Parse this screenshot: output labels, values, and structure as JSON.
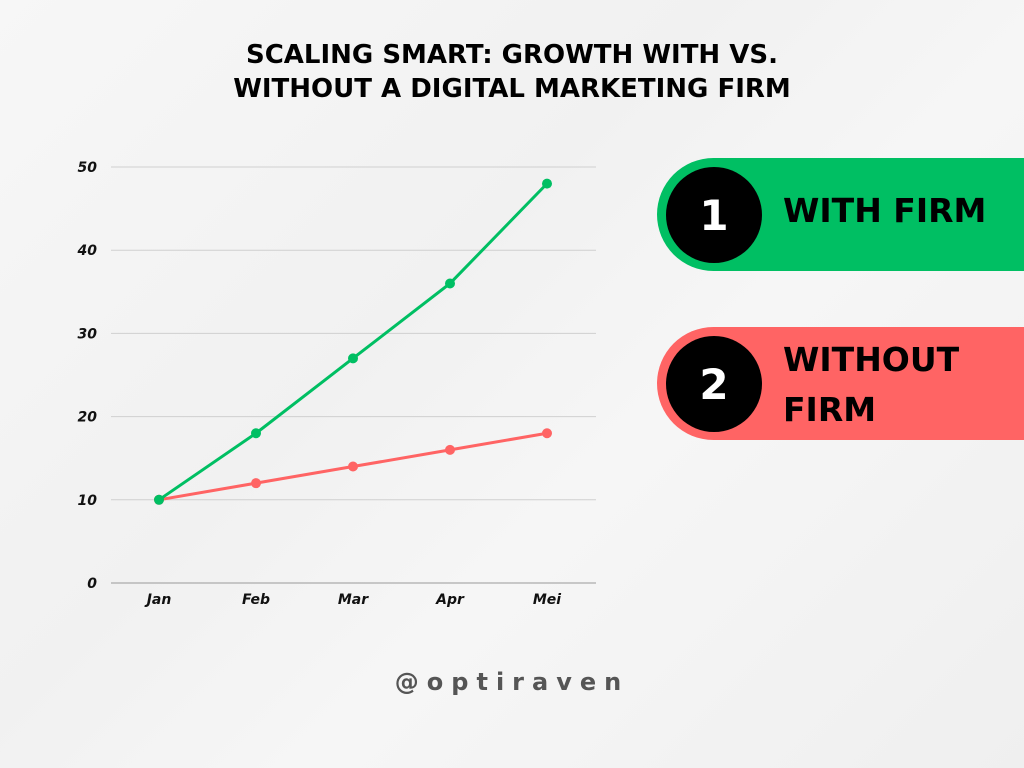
{
  "chart_data": {
    "type": "line",
    "title_lines": [
      "SCALING SMART: GROWTH WITH VS.",
      "WITHOUT A DIGITAL MARKETING FIRM"
    ],
    "categories": [
      "Jan",
      "Feb",
      "Mar",
      "Apr",
      "Mei"
    ],
    "series": [
      {
        "name": "WITH FIRM",
        "color": "#00bf63",
        "values": [
          10,
          18,
          27,
          36,
          48
        ]
      },
      {
        "name": "WITHOUT FIRM",
        "color": "#ff6464",
        "values": [
          10,
          12,
          14,
          16,
          18
        ]
      }
    ],
    "yticks": [
      0,
      10,
      20,
      30,
      40,
      50
    ],
    "ylim": [
      0,
      50
    ],
    "grid": true,
    "legend_placement": "right"
  },
  "legend": [
    {
      "number": "1",
      "label_lines": [
        "WITH FIRM"
      ],
      "color": "#00bf63"
    },
    {
      "number": "2",
      "label_lines": [
        "WITHOUT",
        "FIRM"
      ],
      "color": "#ff6464"
    }
  ],
  "footer": {
    "handle": "@optiraven"
  }
}
